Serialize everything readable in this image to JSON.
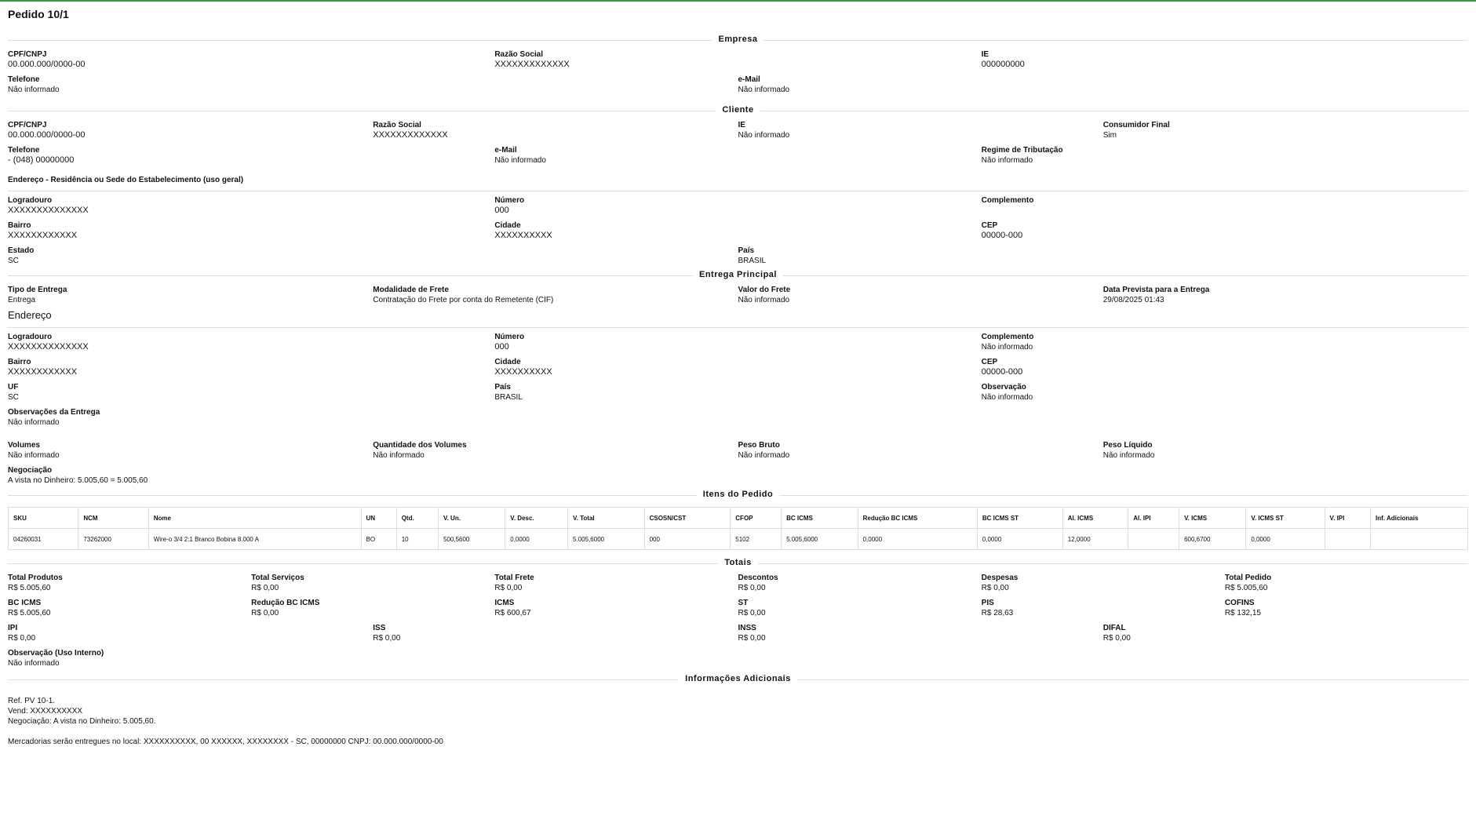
{
  "page_title": "Pedido 10/1",
  "empresa": {
    "section": "Empresa",
    "cpf_label": "CPF/CNPJ",
    "cpf": "00.000.000/0000-00",
    "razao_label": "Razão Social",
    "razao": "XXXXXXXXXXXXX",
    "ie_label": "IE",
    "ie": "000000000",
    "telefone_label": "Telefone",
    "telefone": "Não informado",
    "email_label": "e-Mail",
    "email": "Não informado"
  },
  "cliente": {
    "section": "Cliente",
    "cpf_label": "CPF/CNPJ",
    "cpf": "00.000.000/0000-00",
    "razao_label": "Razão Social",
    "razao": "XXXXXXXXXXXXX",
    "ie_label": "IE",
    "ie": "Não informado",
    "consumidor_label": "Consumidor Final",
    "consumidor": "Sim",
    "telefone_label": "Telefone",
    "telefone": "- (048) 00000000",
    "email_label": "e-Mail",
    "email": "Não informado",
    "regime_label": "Regime de Tributação",
    "regime": "Não informado"
  },
  "endereco_geral": {
    "title": "Endereço - Residência ou Sede do Estabelecimento (uso geral)",
    "logradouro_label": "Logradouro",
    "logradouro": "XXXXXXXXXXXXXX",
    "numero_label": "Número",
    "numero": "000",
    "complemento_label": "Complemento",
    "complemento": "",
    "bairro_label": "Bairro",
    "bairro": "XXXXXXXXXXXX",
    "cidade_label": "Cidade",
    "cidade": "XXXXXXXXXX",
    "cep_label": "CEP",
    "cep": "00000-000",
    "estado_label": "Estado",
    "estado": "SC",
    "pais_label": "País",
    "pais": "BRASIL"
  },
  "entrega": {
    "section": "Entrega Principal",
    "tipo_label": "Tipo de Entrega",
    "tipo": "Entrega",
    "modalidade_label": "Modalidade de Frete",
    "modalidade": "Contratação do Frete por conta do Remetente (CIF)",
    "valor_label": "Valor do Frete",
    "valor": "Não informado",
    "data_label": "Data Prevista para a Entrega",
    "data": "29/08/2025 01:43"
  },
  "endereco_entrega": {
    "title": "Endereço",
    "logradouro_label": "Logradouro",
    "logradouro": "XXXXXXXXXXXXXX",
    "numero_label": "Número",
    "numero": "000",
    "complemento_label": "Complemento",
    "complemento": "Não informado",
    "bairro_label": "Bairro",
    "bairro": "XXXXXXXXXXXX",
    "cidade_label": "Cidade",
    "cidade": "XXXXXXXXXX",
    "cep_label": "CEP",
    "cep": "00000-000",
    "uf_label": "UF",
    "uf": "SC",
    "pais_label": "País",
    "pais": "BRASIL",
    "observacao_label": "Observação",
    "observacao": "Não informado",
    "obs_entrega_label": "Observações da Entrega",
    "obs_entrega": "Não informado"
  },
  "volumes": {
    "volumes_label": "Volumes",
    "volumes": "Não informado",
    "qtd_label": "Quantidade dos Volumes",
    "qtd": "Não informado",
    "bruto_label": "Peso Bruto",
    "bruto": "Não informado",
    "liquido_label": "Peso Líquido",
    "liquido": "Não informado",
    "negociacao_label": "Negociação",
    "negociacao": "A vista no Dinheiro: 5.005,60 = 5.005,60"
  },
  "itens": {
    "section": "Itens do Pedido",
    "headers": [
      "SKU",
      "NCM",
      "Nome",
      "UN",
      "Qtd.",
      "V. Un.",
      "V. Desc.",
      "V. Total",
      "CSOSN/CST",
      "CFOP",
      "BC ICMS",
      "Redução BC ICMS",
      "BC ICMS ST",
      "Al. ICMS",
      "Al. IPI",
      "V. ICMS",
      "V. ICMS ST",
      "V. IPI",
      "Inf. Adicionais"
    ],
    "rows": [
      [
        "04260031",
        "73262000",
        "Wire-o 3/4 2:1 Branco Bobina 8.000 A",
        "BO",
        "10",
        "500,5600",
        "0,0000",
        "5.005,6000",
        "000",
        "5102",
        "5.005,6000",
        "0,0000",
        "0,0000",
        "12,0000",
        "",
        "600,6700",
        "0,0000",
        "",
        ""
      ]
    ]
  },
  "totais": {
    "section": "Totais",
    "row1": [
      {
        "label": "Total Produtos",
        "value": "R$ 5.005,60"
      },
      {
        "label": "Total Serviços",
        "value": "R$ 0,00"
      },
      {
        "label": "Total Frete",
        "value": "R$ 0,00"
      },
      {
        "label": "Descontos",
        "value": "R$ 0,00"
      },
      {
        "label": "Despesas",
        "value": "R$ 0,00"
      },
      {
        "label": "Total Pedido",
        "value": "R$ 5.005,60"
      }
    ],
    "row2": [
      {
        "label": "BC ICMS",
        "value": "R$ 5.005,60"
      },
      {
        "label": "Redução BC ICMS",
        "value": "R$ 0,00"
      },
      {
        "label": "ICMS",
        "value": "R$ 600,67"
      },
      {
        "label": "ST",
        "value": "R$ 0,00"
      },
      {
        "label": "PIS",
        "value": "R$ 28,63"
      },
      {
        "label": "COFINS",
        "value": "R$ 132,15"
      }
    ],
    "row3": [
      {
        "label": "IPI",
        "value": "R$ 0,00"
      },
      {
        "label": "ISS",
        "value": "R$ 0,00"
      },
      {
        "label": "INSS",
        "value": "R$ 0,00"
      },
      {
        "label": "DIFAL",
        "value": "R$ 0,00"
      }
    ],
    "obs_label": "Observação (Uso Interno)",
    "obs": "Não informado"
  },
  "info": {
    "section": "Informações Adicionais",
    "line1": "Ref. PV 10-1.",
    "line2": "Vend: XXXXXXXXXX",
    "line3": "Negociação: A vista no Dinheiro: 5.005,60.",
    "line4": "Mercadorias serão entregues no local: XXXXXXXXXX, 00  XXXXXX, XXXXXXXX - SC, 00000000 CNPJ: 00.000.000/0000-00"
  }
}
